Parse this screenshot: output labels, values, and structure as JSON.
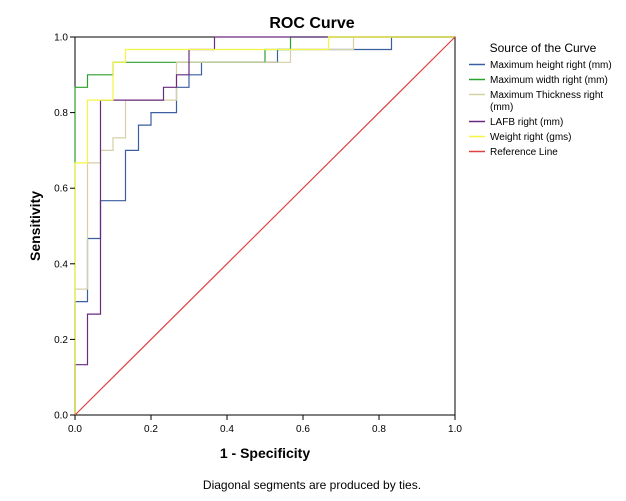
{
  "chart_data": {
    "type": "line",
    "title": "ROC Curve",
    "xlabel": "1 - Specificity",
    "ylabel": "Sensitivity",
    "xlim": [
      0,
      1
    ],
    "ylim": [
      0,
      1
    ],
    "x_ticks": [
      "0.0",
      "0.2",
      "0.4",
      "0.6",
      "0.8",
      "1.0"
    ],
    "y_ticks": [
      "0.0",
      "0.2",
      "0.4",
      "0.6",
      "0.8",
      "1.0"
    ],
    "grid": false,
    "legend_title": "Source of the Curve",
    "legend_position": "right",
    "footnote": "Diagonal segments are produced by ties.",
    "series": [
      {
        "name": "Maximum height right (mm)",
        "color": "#3a5fa0",
        "x": [
          0,
          0,
          0.033,
          0.033,
          0.067,
          0.067,
          0.133,
          0.133,
          0.167,
          0.167,
          0.2,
          0.2,
          0.267,
          0.267,
          0.3,
          0.3,
          0.333,
          0.333,
          0.533,
          0.533,
          0.833,
          0.833,
          1.0
        ],
        "y": [
          0,
          0.3,
          0.3,
          0.467,
          0.467,
          0.567,
          0.567,
          0.7,
          0.7,
          0.767,
          0.767,
          0.8,
          0.8,
          0.867,
          0.867,
          0.9,
          0.9,
          0.933,
          0.933,
          0.967,
          0.967,
          1.0,
          1.0
        ]
      },
      {
        "name": "Maximum width right (mm)",
        "color": "#2ca02c",
        "x": [
          0,
          0,
          0.033,
          0.033,
          0.1,
          0.1,
          0.133,
          0.133,
          0.5,
          0.5,
          0.567,
          0.567,
          1.0
        ],
        "y": [
          0,
          0.867,
          0.867,
          0.9,
          0.9,
          0.933,
          0.933,
          0.933,
          0.933,
          0.967,
          0.967,
          1.0,
          1.0
        ]
      },
      {
        "name": "Maximum Thickness right (mm)",
        "color": "#d6d0a6",
        "x": [
          0,
          0,
          0.033,
          0.033,
          0.067,
          0.067,
          0.1,
          0.1,
          0.133,
          0.133,
          0.267,
          0.267,
          0.567,
          0.567,
          0.7,
          0.7,
          0.733,
          0.733,
          1.0
        ],
        "y": [
          0,
          0.333,
          0.333,
          0.667,
          0.667,
          0.7,
          0.7,
          0.733,
          0.733,
          0.833,
          0.833,
          0.933,
          0.933,
          0.967,
          0.967,
          0.967,
          0.967,
          1.0,
          1.0
        ]
      },
      {
        "name": "LAFB right (mm)",
        "color": "#6a2a80",
        "x": [
          0,
          0,
          0.033,
          0.033,
          0.067,
          0.067,
          0.233,
          0.233,
          0.267,
          0.267,
          0.3,
          0.3,
          0.367,
          0.367,
          1.0
        ],
        "y": [
          0,
          0.133,
          0.133,
          0.267,
          0.267,
          0.833,
          0.833,
          0.867,
          0.867,
          0.9,
          0.9,
          0.967,
          0.967,
          1.0,
          1.0
        ]
      },
      {
        "name": "Weight right (gms)",
        "color": "#f5f542",
        "x": [
          0,
          0,
          0.033,
          0.033,
          0.1,
          0.1,
          0.133,
          0.133,
          0.633,
          0.633,
          0.667,
          0.667,
          1.0
        ],
        "y": [
          0,
          0.667,
          0.667,
          0.833,
          0.833,
          0.933,
          0.933,
          0.967,
          0.967,
          0.967,
          0.967,
          1.0,
          1.0
        ]
      },
      {
        "name": "Reference Line",
        "color": "#e04040",
        "x": [
          0,
          1
        ],
        "y": [
          0,
          1
        ]
      }
    ]
  }
}
